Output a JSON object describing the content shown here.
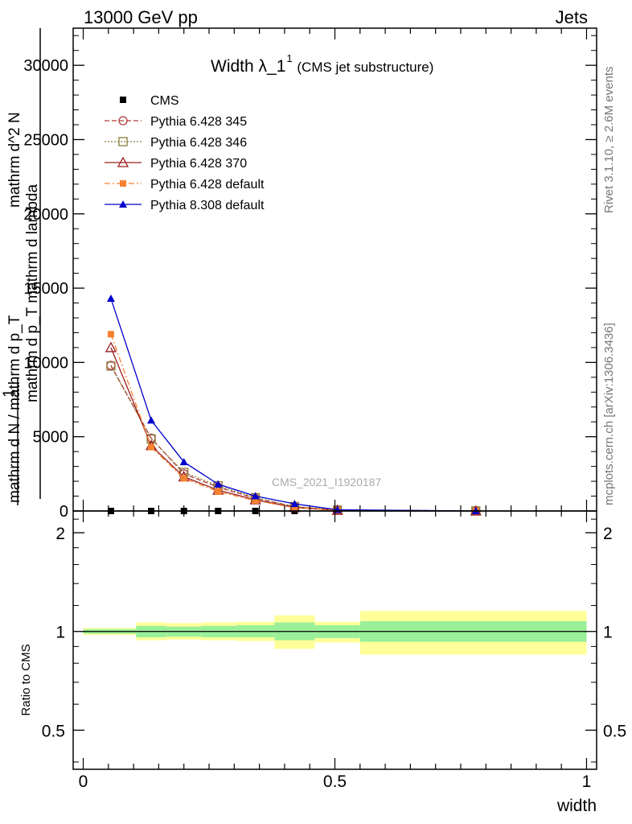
{
  "header": {
    "left": "13000 GeV pp",
    "right": "Jets"
  },
  "plot_title": {
    "main": "Width λ_1",
    "superscript": "1",
    "sub": "(CMS jet substructure)"
  },
  "side_labels": {
    "rivet": "Rivet 3.1.10, ≥ 2.6M events",
    "mcplots": "mcplots.cern.ch [arXiv:1306.3436]"
  },
  "watermark": "CMS_2021_I1920187",
  "y_axis_label": {
    "one": "1",
    "denominator": "mathrm d N / mathrm d p_T",
    "numerator_a": "mathrm d^2 N",
    "numerator_b": "mathrm d p_T mathrm d lambda"
  },
  "ratio_axis_label": "Ratio to CMS",
  "x_axis_label": "width",
  "colors": {
    "cms": "#000000",
    "p345": "#b23a3a",
    "p346": "#8b7a3a",
    "p370": "#9b1c1c",
    "p6def": "#f58231",
    "p8def": "#0000cc",
    "band_inner": "#99f099",
    "band_outer": "#ffff99"
  },
  "chart_data": [
    {
      "type": "line",
      "panel": "main",
      "xlim": [
        -0.02,
        1.02
      ],
      "ylim": [
        0,
        32500
      ],
      "x_ticks": [
        0,
        0.5,
        1
      ],
      "x_tick_labels": [
        "0",
        "0.5",
        "1"
      ],
      "y_ticks": [
        0,
        5000,
        10000,
        15000,
        20000,
        25000,
        30000
      ],
      "y_tick_labels": [
        "0",
        "5000",
        "10000",
        "15000",
        "20000",
        "25000",
        "30000"
      ],
      "x": [
        0.055,
        0.135,
        0.2,
        0.268,
        0.342,
        0.42,
        0.505,
        0.78
      ],
      "series": [
        {
          "name": "CMS",
          "key": "cms",
          "style": "data",
          "values": [
            0,
            0,
            0,
            0,
            0,
            0,
            0,
            0
          ]
        },
        {
          "name": "Pythia 6.428 345",
          "key": "p345",
          "style": "open-circle-dashed",
          "values": [
            9800,
            4900,
            2500,
            1600,
            850,
            280,
            60,
            4
          ]
        },
        {
          "name": "Pythia 6.428 346",
          "key": "p346",
          "style": "open-square-dotted",
          "values": [
            9750,
            4850,
            2600,
            1700,
            900,
            300,
            65,
            4
          ]
        },
        {
          "name": "Pythia 6.428 370",
          "key": "p370",
          "style": "open-triangle-solid",
          "values": [
            11000,
            4400,
            2300,
            1400,
            750,
            230,
            50,
            3
          ]
        },
        {
          "name": "Pythia 6.428 default",
          "key": "p6def",
          "style": "filled-square-dashdot",
          "values": [
            11900,
            4300,
            2200,
            1300,
            700,
            220,
            48,
            3
          ]
        },
        {
          "name": "Pythia 8.308 default",
          "key": "p8def",
          "style": "filled-triangle-solid",
          "values": [
            14300,
            6100,
            3300,
            1800,
            1000,
            480,
            80,
            5
          ]
        }
      ],
      "legend_position": "top-left"
    },
    {
      "type": "area",
      "panel": "ratio",
      "xlim": [
        -0.02,
        1.02
      ],
      "ylim": [
        0.38,
        2.33
      ],
      "log_y": true,
      "y_ticks": [
        0.5,
        1,
        2
      ],
      "y_tick_labels": [
        "0.5",
        "1",
        "2"
      ],
      "bins": [
        {
          "x0": 0.0,
          "x1": 0.105,
          "inner": [
            0.985,
            1.015
          ],
          "outer": [
            0.975,
            1.025
          ]
        },
        {
          "x0": 0.105,
          "x1": 0.165,
          "inner": [
            0.96,
            1.04
          ],
          "outer": [
            0.94,
            1.065
          ]
        },
        {
          "x0": 0.165,
          "x1": 0.235,
          "inner": [
            0.965,
            1.035
          ],
          "outer": [
            0.945,
            1.06
          ]
        },
        {
          "x0": 0.235,
          "x1": 0.305,
          "inner": [
            0.96,
            1.04
          ],
          "outer": [
            0.94,
            1.065
          ]
        },
        {
          "x0": 0.305,
          "x1": 0.38,
          "inner": [
            0.96,
            1.045
          ],
          "outer": [
            0.935,
            1.07
          ]
        },
        {
          "x0": 0.38,
          "x1": 0.46,
          "inner": [
            0.94,
            1.065
          ],
          "outer": [
            0.885,
            1.12
          ]
        },
        {
          "x0": 0.46,
          "x1": 0.55,
          "inner": [
            0.955,
            1.045
          ],
          "outer": [
            0.925,
            1.07
          ]
        },
        {
          "x0": 0.55,
          "x1": 1.0,
          "inner": [
            0.93,
            1.075
          ],
          "outer": [
            0.85,
            1.155
          ]
        }
      ],
      "reference_line": 1
    }
  ]
}
